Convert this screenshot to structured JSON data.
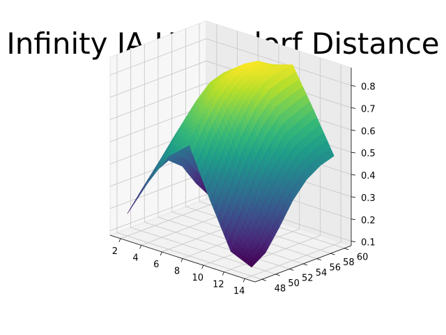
{
  "chart_data": {
    "type": "surface",
    "title": "Infinity JA Haussdorf Distance",
    "xlabel": "",
    "ylabel": "",
    "zlabel": "",
    "x_ticks": [
      2,
      4,
      6,
      8,
      10,
      12,
      14
    ],
    "y_ticks": [
      48,
      50,
      52,
      54,
      56,
      58,
      60
    ],
    "z_ticks": [
      0.1,
      0.2,
      0.3,
      0.4,
      0.5,
      0.6,
      0.7,
      0.8
    ],
    "xlim": [
      1,
      15
    ],
    "ylim": [
      47,
      61
    ],
    "zlim": [
      0.08,
      0.88
    ],
    "grid": true,
    "colormap": "viridis",
    "x": [
      2,
      4,
      6,
      8,
      10,
      12,
      14
    ],
    "y": [
      48,
      50,
      52,
      54,
      56,
      58,
      60
    ],
    "z": [
      [
        0.18,
        0.35,
        0.5,
        0.58,
        0.36,
        0.16,
        0.12
      ],
      [
        0.26,
        0.44,
        0.62,
        0.7,
        0.5,
        0.28,
        0.16
      ],
      [
        0.32,
        0.52,
        0.7,
        0.78,
        0.64,
        0.42,
        0.25
      ],
      [
        0.35,
        0.57,
        0.76,
        0.83,
        0.74,
        0.52,
        0.35
      ],
      [
        0.3,
        0.54,
        0.78,
        0.85,
        0.8,
        0.6,
        0.42
      ],
      [
        0.2,
        0.46,
        0.74,
        0.84,
        0.82,
        0.63,
        0.46
      ],
      [
        0.12,
        0.3,
        0.62,
        0.8,
        0.83,
        0.66,
        0.48
      ]
    ]
  }
}
